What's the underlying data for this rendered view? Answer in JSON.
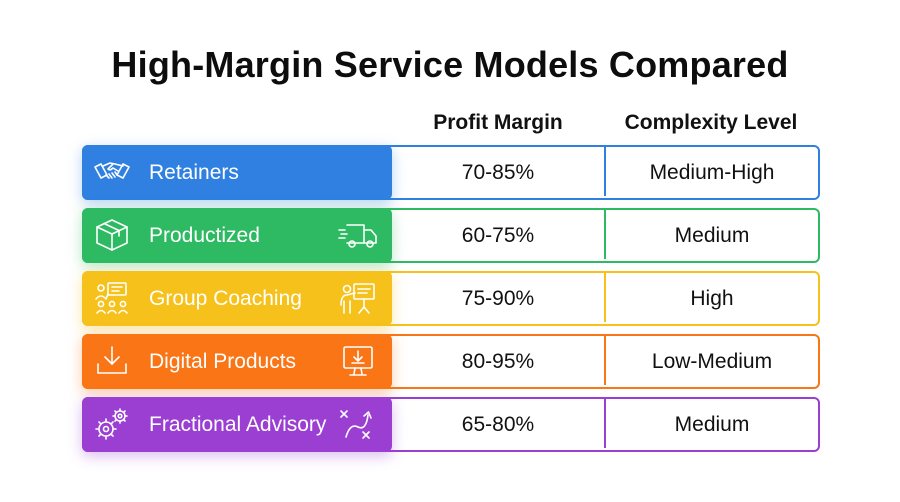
{
  "title": "High-Margin Service Models Compared",
  "columns": {
    "margin": "Profit Margin",
    "complexity": "Complexity Level"
  },
  "rows": [
    {
      "name": "Retainers",
      "margin": "70-85%",
      "complexity": "Medium-High",
      "color": "#2F80E1",
      "icon": "handshake-icon"
    },
    {
      "name": "Productized",
      "margin": "60-75%",
      "complexity": "Medium",
      "color": "#2DBA62",
      "icon": "box-icon",
      "side_icon": "delivery-truck-icon"
    },
    {
      "name": "Group Coaching",
      "margin": "75-90%",
      "complexity": "High",
      "color": "#F5C11A",
      "icon": "presentation-group-icon",
      "side_icon": "presenter-board-icon"
    },
    {
      "name": "Digital Products",
      "margin": "80-95%",
      "complexity": "Low-Medium",
      "color": "#F97516",
      "icon": "download-icon",
      "side_icon": "monitor-download-icon"
    },
    {
      "name": "Fractional Advisory",
      "margin": "65-80%",
      "complexity": "Medium",
      "color": "#9B3FD3",
      "icon": "gears-icon",
      "side_icon": "strategy-play-icon"
    }
  ]
}
